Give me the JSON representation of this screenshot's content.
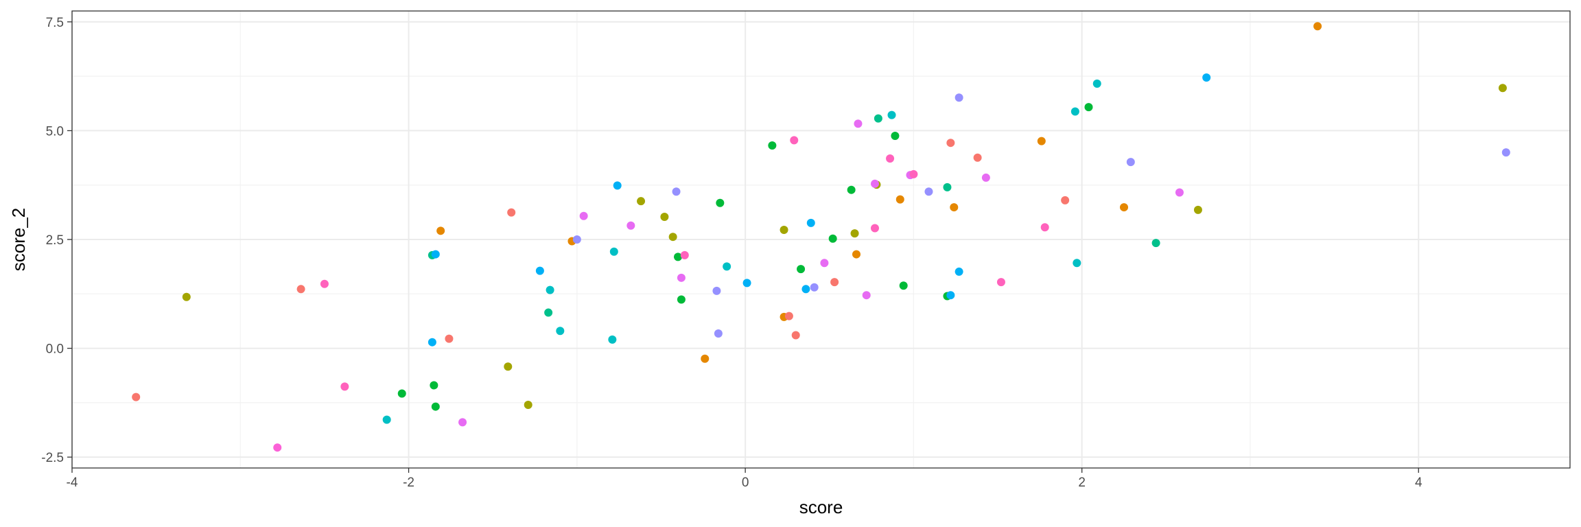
{
  "chart_data": {
    "type": "scatter",
    "xlabel": "score",
    "ylabel": "score_2",
    "xlim": [
      -4.0,
      4.9
    ],
    "ylim": [
      -2.75,
      7.75
    ],
    "x_ticks": [
      -4,
      -2,
      0,
      2,
      4
    ],
    "x_tick_labels": [
      "-4",
      "-2",
      "0",
      "2",
      "4"
    ],
    "y_ticks": [
      -2.5,
      0,
      2.5,
      5,
      7.5
    ],
    "y_tick_labels": [
      "-2.5",
      "0.0",
      "2.5",
      "5.0",
      "7.5"
    ],
    "grid": true,
    "legend": "none",
    "background": "#ffffff",
    "grid_major_color": "#ebebeb",
    "grid_minor_color": "#f2f2f2",
    "panel_border_color": "#333333",
    "points": [
      {
        "x": -3.62,
        "y": -1.12,
        "color": "#F8766D"
      },
      {
        "x": -3.32,
        "y": 1.18,
        "color": "#A3A500"
      },
      {
        "x": -2.78,
        "y": -2.28,
        "color": "#FB61D7"
      },
      {
        "x": -2.64,
        "y": 1.36,
        "color": "#F8766D"
      },
      {
        "x": -2.5,
        "y": 1.48,
        "color": "#FF62BC"
      },
      {
        "x": -2.38,
        "y": -0.88,
        "color": "#FF62BC"
      },
      {
        "x": -2.04,
        "y": -1.04,
        "color": "#00BA38"
      },
      {
        "x": -2.13,
        "y": -1.64,
        "color": "#00BFC4"
      },
      {
        "x": -1.86,
        "y": 2.14,
        "color": "#00C08B"
      },
      {
        "x": -1.84,
        "y": 2.16,
        "color": "#00B0F6"
      },
      {
        "x": -1.86,
        "y": 0.14,
        "color": "#00B0F6"
      },
      {
        "x": -1.85,
        "y": -0.85,
        "color": "#00BA38"
      },
      {
        "x": -1.84,
        "y": -1.34,
        "color": "#00BA38"
      },
      {
        "x": -1.81,
        "y": 2.7,
        "color": "#E58700"
      },
      {
        "x": -1.76,
        "y": 0.22,
        "color": "#F8766D"
      },
      {
        "x": -1.68,
        "y": -1.7,
        "color": "#E76BF3"
      },
      {
        "x": -1.39,
        "y": 3.12,
        "color": "#F8766D"
      },
      {
        "x": -1.41,
        "y": -0.42,
        "color": "#A3A500"
      },
      {
        "x": -1.29,
        "y": -1.3,
        "color": "#A3A500"
      },
      {
        "x": -1.22,
        "y": 1.78,
        "color": "#00B0F6"
      },
      {
        "x": -1.16,
        "y": 1.34,
        "color": "#00BFC4"
      },
      {
        "x": -1.17,
        "y": 0.82,
        "color": "#00C08B"
      },
      {
        "x": -1.1,
        "y": 0.4,
        "color": "#00BFC4"
      },
      {
        "x": -1.03,
        "y": 2.46,
        "color": "#E58700"
      },
      {
        "x": -1.0,
        "y": 2.5,
        "color": "#9590FF"
      },
      {
        "x": -0.96,
        "y": 3.04,
        "color": "#E76BF3"
      },
      {
        "x": -0.76,
        "y": 3.74,
        "color": "#00B0F6"
      },
      {
        "x": -0.78,
        "y": 2.22,
        "color": "#00BFC4"
      },
      {
        "x": -0.79,
        "y": 0.2,
        "color": "#00BFC4"
      },
      {
        "x": -0.68,
        "y": 2.82,
        "color": "#E76BF3"
      },
      {
        "x": -0.62,
        "y": 3.38,
        "color": "#A3A500"
      },
      {
        "x": -0.48,
        "y": 3.02,
        "color": "#A3A500"
      },
      {
        "x": -0.43,
        "y": 2.56,
        "color": "#A3A500"
      },
      {
        "x": -0.41,
        "y": 3.6,
        "color": "#9590FF"
      },
      {
        "x": -0.4,
        "y": 2.1,
        "color": "#00BA38"
      },
      {
        "x": -0.36,
        "y": 2.14,
        "color": "#FF62BC"
      },
      {
        "x": -0.38,
        "y": 1.62,
        "color": "#E76BF3"
      },
      {
        "x": -0.38,
        "y": 1.12,
        "color": "#00BA38"
      },
      {
        "x": -0.24,
        "y": -0.24,
        "color": "#E58700"
      },
      {
        "x": -0.17,
        "y": 1.32,
        "color": "#9590FF"
      },
      {
        "x": -0.16,
        "y": 0.34,
        "color": "#9590FF"
      },
      {
        "x": -0.15,
        "y": 3.34,
        "color": "#00BA38"
      },
      {
        "x": -0.11,
        "y": 1.88,
        "color": "#00BFC4"
      },
      {
        "x": 0.01,
        "y": 1.5,
        "color": "#00B0F6"
      },
      {
        "x": 0.16,
        "y": 4.66,
        "color": "#00BA38"
      },
      {
        "x": 0.23,
        "y": 2.72,
        "color": "#A3A500"
      },
      {
        "x": 0.23,
        "y": 0.72,
        "color": "#E58700"
      },
      {
        "x": 0.26,
        "y": 0.74,
        "color": "#F8766D"
      },
      {
        "x": 0.29,
        "y": 4.78,
        "color": "#FF62BC"
      },
      {
        "x": 0.3,
        "y": 0.3,
        "color": "#F8766D"
      },
      {
        "x": 0.33,
        "y": 1.82,
        "color": "#00BA38"
      },
      {
        "x": 0.36,
        "y": 1.36,
        "color": "#00B0F6"
      },
      {
        "x": 0.39,
        "y": 2.88,
        "color": "#00B0F6"
      },
      {
        "x": 0.41,
        "y": 1.4,
        "color": "#9590FF"
      },
      {
        "x": 0.47,
        "y": 1.96,
        "color": "#E76BF3"
      },
      {
        "x": 0.52,
        "y": 2.52,
        "color": "#00BA38"
      },
      {
        "x": 0.53,
        "y": 1.52,
        "color": "#F8766D"
      },
      {
        "x": 0.63,
        "y": 3.64,
        "color": "#00BA38"
      },
      {
        "x": 0.65,
        "y": 2.64,
        "color": "#A3A500"
      },
      {
        "x": 0.66,
        "y": 2.16,
        "color": "#E58700"
      },
      {
        "x": 0.67,
        "y": 5.16,
        "color": "#E76BF3"
      },
      {
        "x": 0.72,
        "y": 1.22,
        "color": "#E76BF3"
      },
      {
        "x": 0.77,
        "y": 2.76,
        "color": "#FF62BC"
      },
      {
        "x": 0.78,
        "y": 3.76,
        "color": "#A3A500"
      },
      {
        "x": 0.79,
        "y": 5.28,
        "color": "#00C08B"
      },
      {
        "x": 0.77,
        "y": 3.78,
        "color": "#E76BF3"
      },
      {
        "x": 0.86,
        "y": 4.36,
        "color": "#FF62BC"
      },
      {
        "x": 0.87,
        "y": 5.36,
        "color": "#00BFC4"
      },
      {
        "x": 0.89,
        "y": 4.88,
        "color": "#00BA38"
      },
      {
        "x": 0.92,
        "y": 3.42,
        "color": "#E58700"
      },
      {
        "x": 0.94,
        "y": 1.44,
        "color": "#00BA38"
      },
      {
        "x": 0.98,
        "y": 3.98,
        "color": "#E76BF3"
      },
      {
        "x": 1.0,
        "y": 4.0,
        "color": "#FF62BC"
      },
      {
        "x": 1.09,
        "y": 3.6,
        "color": "#9590FF"
      },
      {
        "x": 1.2,
        "y": 3.7,
        "color": "#00C08B"
      },
      {
        "x": 1.2,
        "y": 1.2,
        "color": "#00BA38"
      },
      {
        "x": 1.22,
        "y": 1.22,
        "color": "#00B0F6"
      },
      {
        "x": 1.22,
        "y": 4.72,
        "color": "#F8766D"
      },
      {
        "x": 1.24,
        "y": 3.24,
        "color": "#E58700"
      },
      {
        "x": 1.27,
        "y": 5.76,
        "color": "#9590FF"
      },
      {
        "x": 1.27,
        "y": 1.76,
        "color": "#00B0F6"
      },
      {
        "x": 1.38,
        "y": 4.38,
        "color": "#F8766D"
      },
      {
        "x": 1.43,
        "y": 3.92,
        "color": "#E76BF3"
      },
      {
        "x": 1.52,
        "y": 1.52,
        "color": "#FF62BC"
      },
      {
        "x": 1.76,
        "y": 4.76,
        "color": "#E58700"
      },
      {
        "x": 1.78,
        "y": 2.78,
        "color": "#FF62BC"
      },
      {
        "x": 1.9,
        "y": 3.4,
        "color": "#F8766D"
      },
      {
        "x": 1.96,
        "y": 5.44,
        "color": "#00BFC4"
      },
      {
        "x": 1.97,
        "y": 1.96,
        "color": "#00BFC4"
      },
      {
        "x": 2.04,
        "y": 5.54,
        "color": "#00BA38"
      },
      {
        "x": 2.09,
        "y": 6.08,
        "color": "#00BFC4"
      },
      {
        "x": 2.25,
        "y": 3.24,
        "color": "#E58700"
      },
      {
        "x": 2.29,
        "y": 4.28,
        "color": "#9590FF"
      },
      {
        "x": 2.44,
        "y": 2.42,
        "color": "#00C08B"
      },
      {
        "x": 2.58,
        "y": 3.58,
        "color": "#E76BF3"
      },
      {
        "x": 2.69,
        "y": 3.18,
        "color": "#A3A500"
      },
      {
        "x": 2.74,
        "y": 6.22,
        "color": "#00B0F6"
      },
      {
        "x": 3.4,
        "y": 7.4,
        "color": "#E58700"
      },
      {
        "x": 4.5,
        "y": 5.98,
        "color": "#A3A500"
      },
      {
        "x": 4.52,
        "y": 4.5,
        "color": "#9590FF"
      }
    ]
  }
}
